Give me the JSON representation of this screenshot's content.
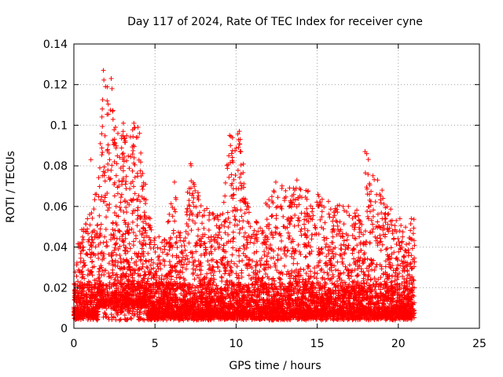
{
  "chart_data": {
    "type": "scatter",
    "title": "Day 117 of 2024, Rate Of TEC Index for receiver cyne",
    "xlabel": "GPS time / hours",
    "ylabel": "ROTI / TECUs",
    "xlim": [
      0,
      25
    ],
    "ylim": [
      0,
      0.14
    ],
    "xticks": [
      0,
      5,
      10,
      15,
      20,
      25
    ],
    "xtick_labels": [
      "0",
      "5",
      "10",
      "15",
      "20",
      "25"
    ],
    "yticks": [
      0,
      0.02,
      0.04,
      0.06,
      0.08,
      0.1,
      0.12,
      0.14
    ],
    "ytick_labels": [
      "0",
      "0.02",
      "0.04",
      "0.06",
      "0.08",
      "0.1",
      "0.12",
      "0.14"
    ],
    "grid": true,
    "marker": "plus",
    "color": "#ff0000",
    "x_extent": [
      0,
      21
    ],
    "envelope": [
      {
        "x": 0.0,
        "y": 0.02
      },
      {
        "x": 0.2,
        "y": 0.04
      },
      {
        "x": 0.5,
        "y": 0.052
      },
      {
        "x": 1.0,
        "y": 0.055
      },
      {
        "x": 1.5,
        "y": 0.075
      },
      {
        "x": 1.8,
        "y": 0.127
      },
      {
        "x": 2.3,
        "y": 0.123
      },
      {
        "x": 2.8,
        "y": 0.095
      },
      {
        "x": 3.2,
        "y": 0.1
      },
      {
        "x": 3.8,
        "y": 0.101
      },
      {
        "x": 4.3,
        "y": 0.08
      },
      {
        "x": 4.8,
        "y": 0.05
      },
      {
        "x": 5.5,
        "y": 0.04
      },
      {
        "x": 6.2,
        "y": 0.072
      },
      {
        "x": 6.8,
        "y": 0.045
      },
      {
        "x": 7.2,
        "y": 0.08
      },
      {
        "x": 8.0,
        "y": 0.057
      },
      {
        "x": 9.0,
        "y": 0.06
      },
      {
        "x": 9.7,
        "y": 0.096
      },
      {
        "x": 10.2,
        "y": 0.097
      },
      {
        "x": 11.0,
        "y": 0.05
      },
      {
        "x": 12.5,
        "y": 0.072
      },
      {
        "x": 13.7,
        "y": 0.073
      },
      {
        "x": 15.0,
        "y": 0.065
      },
      {
        "x": 16.5,
        "y": 0.06
      },
      {
        "x": 17.8,
        "y": 0.055
      },
      {
        "x": 18.0,
        "y": 0.087
      },
      {
        "x": 19.0,
        "y": 0.068
      },
      {
        "x": 20.0,
        "y": 0.05
      },
      {
        "x": 21.0,
        "y": 0.054
      }
    ],
    "outliers": [
      {
        "x": 1.82,
        "y": 0.127
      },
      {
        "x": 2.3,
        "y": 0.123
      },
      {
        "x": 2.35,
        "y": 0.118
      },
      {
        "x": 1.95,
        "y": 0.119
      },
      {
        "x": 2.05,
        "y": 0.112
      },
      {
        "x": 1.75,
        "y": 0.108
      },
      {
        "x": 3.05,
        "y": 0.101
      },
      {
        "x": 3.7,
        "y": 0.101
      },
      {
        "x": 3.95,
        "y": 0.099
      },
      {
        "x": 4.05,
        "y": 0.096
      },
      {
        "x": 3.85,
        "y": 0.094
      },
      {
        "x": 7.2,
        "y": 0.081
      },
      {
        "x": 9.6,
        "y": 0.095
      },
      {
        "x": 9.65,
        "y": 0.09
      },
      {
        "x": 9.55,
        "y": 0.085
      },
      {
        "x": 10.2,
        "y": 0.097
      },
      {
        "x": 10.25,
        "y": 0.093
      },
      {
        "x": 10.15,
        "y": 0.089
      },
      {
        "x": 10.3,
        "y": 0.076
      },
      {
        "x": 17.95,
        "y": 0.087
      },
      {
        "x": 18.05,
        "y": 0.086
      },
      {
        "x": 6.2,
        "y": 0.072
      },
      {
        "x": 12.45,
        "y": 0.072
      },
      {
        "x": 13.75,
        "y": 0.073
      },
      {
        "x": 13.7,
        "y": 0.069
      },
      {
        "x": 16.6,
        "y": 0.06
      },
      {
        "x": 19.0,
        "y": 0.068
      },
      {
        "x": 19.05,
        "y": 0.064
      },
      {
        "x": 15.05,
        "y": 0.066
      },
      {
        "x": 7.0,
        "y": 0.067
      },
      {
        "x": 7.1,
        "y": 0.063
      },
      {
        "x": 8.2,
        "y": 0.059
      },
      {
        "x": 9.8,
        "y": 0.064
      },
      {
        "x": 1.05,
        "y": 0.083
      },
      {
        "x": 1.6,
        "y": 0.079
      },
      {
        "x": 2.5,
        "y": 0.082
      },
      {
        "x": 20.1,
        "y": 0.054
      },
      {
        "x": 20.8,
        "y": 0.054
      }
    ]
  }
}
